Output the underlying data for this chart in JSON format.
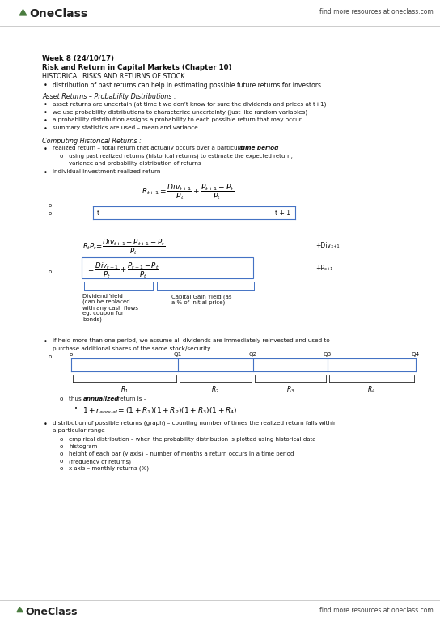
{
  "bg_color": "#ffffff",
  "page_width": 5.44,
  "page_height": 7.7,
  "dpi": 100,
  "header_right": "find more resources at oneclass.com",
  "footer_right": "find more resources at oneclass.com",
  "title_line1": "Week 8 (24/10/17)",
  "title_line2": "Risk and Return in Capital Markets (Chapter 10)",
  "section1": "HISTORICAL RISKS AND RETURNS OF STOCK",
  "bullet1": "distribution of past returns can help in estimating possible future returns for investors",
  "section2": "Asset Returns – Probability Distributions :",
  "bullets2": [
    "asset returns are uncertain (at time t we don’t know for sure the dividends and prices at t+1)",
    "we use probability distributions to characterize uncertainty (just like random variables)",
    "a probability distribution assigns a probability to each possible return that may occur",
    "summary statistics are used – mean and variance"
  ],
  "section3": "Computing Historical Returns :",
  "sub_bullet3": "using past realized returns (historical returns) to estimate the expected return,",
  "sub_bullet3b": "variance and probability distribution of returns",
  "div_yield_label": "Dividend Yield\n(can be replaced\nwith any cash flows\neg. coupon for\nbonds)",
  "cap_gain_label": "Capital Gain Yield (as\na % of initial price)",
  "bullet4a": "if held more than one period, we assume all dividends are immediately reinvested and used to",
  "bullet4b": "purchase additional shares of the same stock/security",
  "timeline2_labels": [
    "o",
    "Q1",
    "Q2",
    "Q3",
    "Q4"
  ],
  "bullets5_sub": [
    "empirical distribution – when the probability distribution is plotted using historical data",
    "histogram",
    "height of each bar (y axis) – number of months a return occurs in a time period",
    "(frequency of returns)",
    "x axis – monthly returns (%)"
  ]
}
